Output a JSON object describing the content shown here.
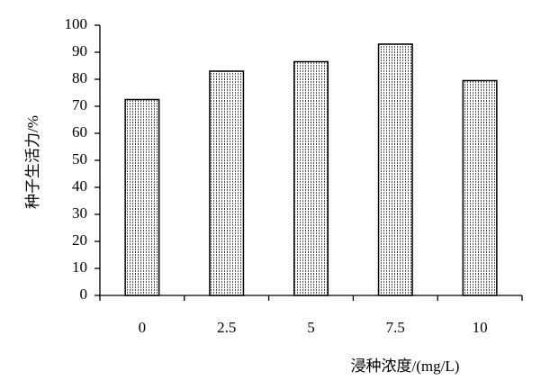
{
  "chart_data": {
    "type": "bar",
    "categories": [
      "0",
      "2.5",
      "5",
      "7.5",
      "10"
    ],
    "values": [
      72.5,
      83,
      86.5,
      93,
      79.5
    ],
    "color": "#000000",
    "ylim": [
      0,
      100
    ],
    "yticks": [
      0,
      10,
      20,
      30,
      40,
      50,
      60,
      70,
      80,
      90,
      100
    ],
    "xlabel": "浸种浓度/(mg/L)",
    "ylabel": "种子生活力/%"
  }
}
